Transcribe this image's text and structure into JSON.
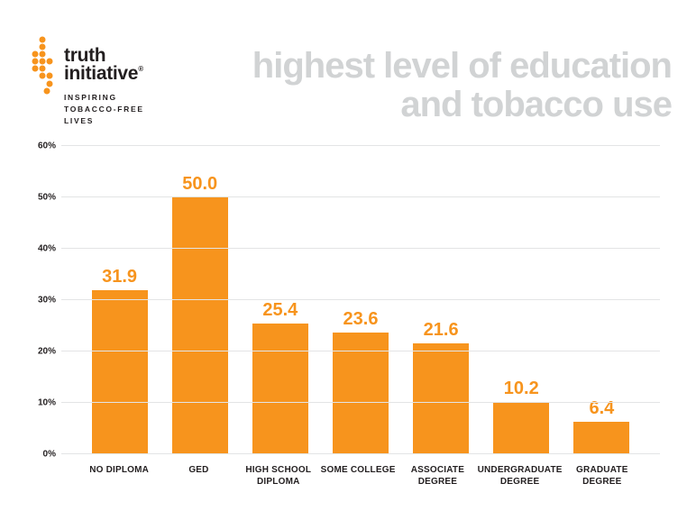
{
  "logo": {
    "brand_line1": "truth",
    "brand_line2": "initiative",
    "registered_mark": "®",
    "tagline_lines": [
      "INSPIRING",
      "TOBACCO-FREE",
      "LIVES"
    ],
    "dot_color": "#F7941D"
  },
  "header": {
    "title_line1": "highest level of education",
    "title_line2": "and tobacco use"
  },
  "chart_data": {
    "type": "bar",
    "title": "highest level of education and tobacco use",
    "categories": [
      "NO DIPLOMA",
      "GED",
      "HIGH SCHOOL DIPLOMA",
      "SOME COLLEGE",
      "ASSOCIATE DEGREE",
      "UNDERGRADUATE DEGREE",
      "GRADUATE DEGREE"
    ],
    "category_display_lines": [
      [
        "NO DIPLOMA"
      ],
      [
        "GED"
      ],
      [
        "HIGH SCHOOL",
        "DIPLOMA"
      ],
      [
        "SOME COLLEGE"
      ],
      [
        "ASSOCIATE",
        "DEGREE"
      ],
      [
        "UNDERGRADUATE",
        "DEGREE"
      ],
      [
        "GRADUATE",
        "DEGREE"
      ]
    ],
    "values": [
      31.9,
      50.0,
      25.4,
      23.6,
      21.6,
      10.2,
      6.4
    ],
    "value_labels": [
      "31.9",
      "50.0",
      "25.4",
      "23.6",
      "21.6",
      "10.2",
      "6.4"
    ],
    "unit": "%",
    "xlabel": "",
    "ylabel": "",
    "ylim": [
      0,
      60
    ],
    "y_ticks": [
      {
        "value": 0,
        "label": "0%"
      },
      {
        "value": 10,
        "label": "10%"
      },
      {
        "value": 20,
        "label": "20%"
      },
      {
        "value": 30,
        "label": "30%"
      },
      {
        "value": 40,
        "label": "40%"
      },
      {
        "value": 50,
        "label": "50%"
      },
      {
        "value": 60,
        "label": "60%"
      }
    ],
    "grid": true,
    "legend": "none",
    "bar_color": "#F7941D"
  },
  "colors": {
    "orange": "#F7941D",
    "text_dark": "#231F20",
    "title_gray": "#D1D3D4",
    "gridline": "#E3E4E5",
    "background": "#FFFFFF"
  }
}
